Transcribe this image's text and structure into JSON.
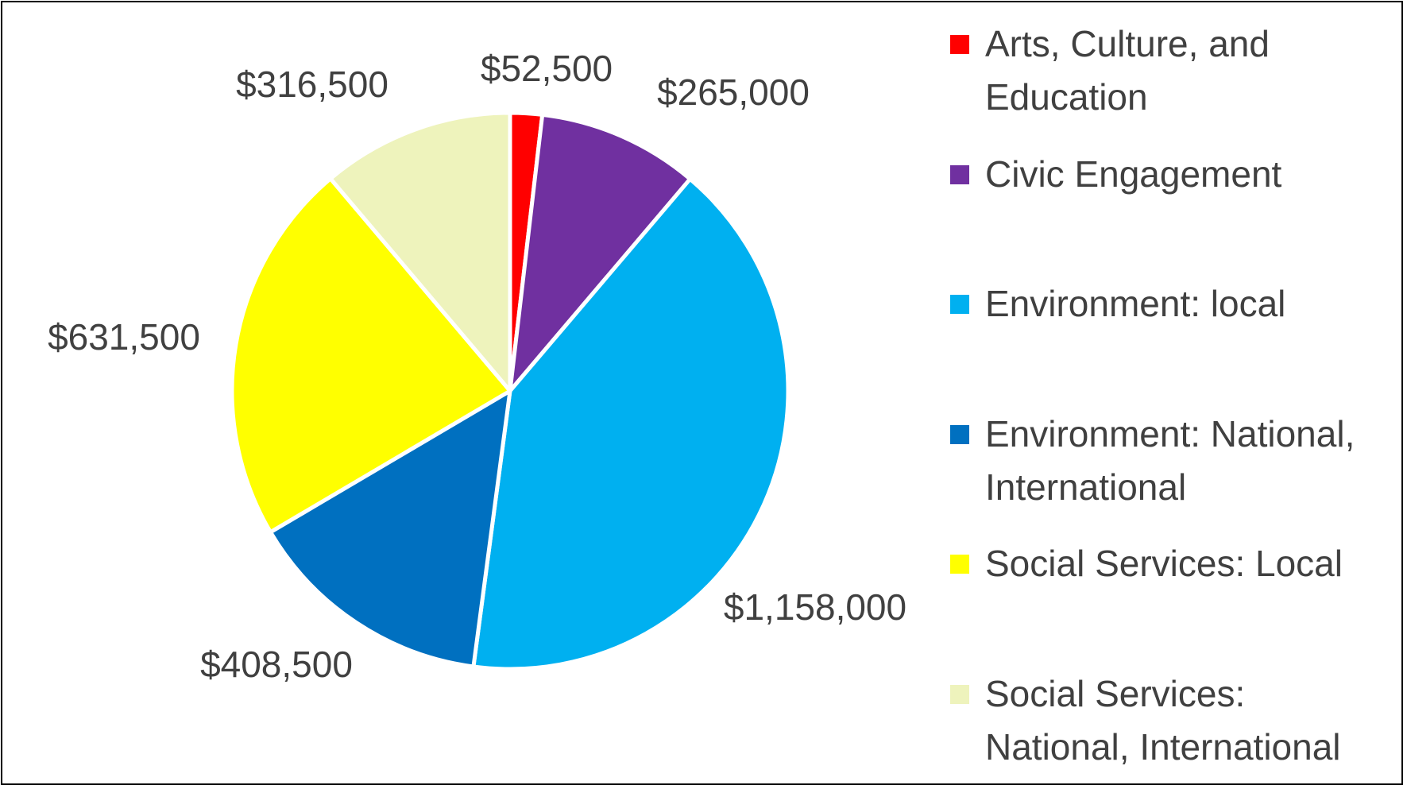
{
  "chart_data": {
    "type": "pie",
    "title": "",
    "categories": [
      "Arts, Culture, and Education",
      "Civic Engagement",
      "Environment: local",
      "Environment: National, International",
      "Social Services: Local",
      "Social Services: National, International"
    ],
    "values": [
      52500,
      265000,
      1158000,
      408500,
      631500,
      316500
    ],
    "data_labels": [
      "$52,500",
      "$265,000",
      "$1,158,000",
      "$408,500",
      "$631,500",
      "$316,500"
    ],
    "colors": [
      "#FF0000",
      "#7030A0",
      "#00B0F0",
      "#0070C0",
      "#FFFF00",
      "#EEF3BC"
    ],
    "legend": "right",
    "start_angle": "12 o'clock, clockwise"
  }
}
